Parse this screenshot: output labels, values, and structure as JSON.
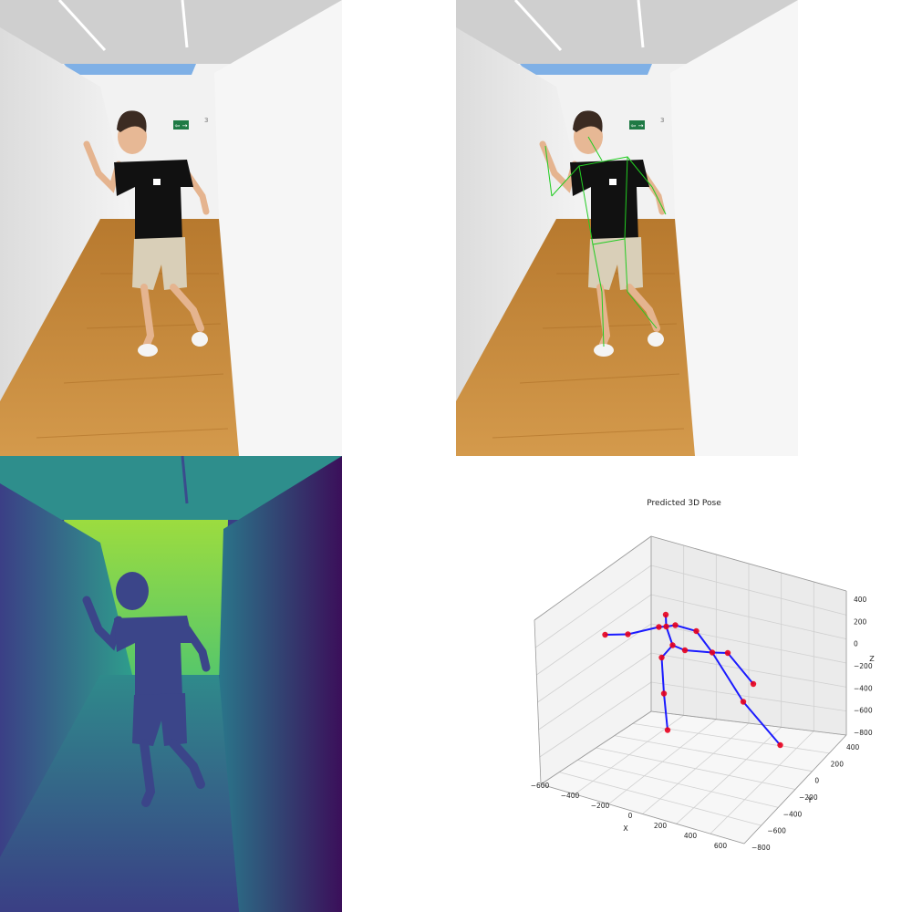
{
  "panels": {
    "photo_original": {},
    "photo_keypoints": {},
    "depth_map": {},
    "pose_plot": {}
  },
  "scene": {
    "exit_sign_glyph": "⇦ →",
    "room_number": "3"
  },
  "colors": {
    "wall": "#ececec",
    "floor": "#c98a3a",
    "shirt": "#111111",
    "shorts": "#d9cfb8",
    "skeleton_overlay": "#22cc22",
    "pose_bone": "#1a1aff",
    "pose_joint": "#e8001c",
    "depth_far": "#b8e23a",
    "depth_near": "#3b1f5e"
  },
  "chart_data": {
    "type": "scatter",
    "title": "Predicted 3D Pose",
    "xlabel": "X",
    "ylabel": "Y",
    "zlabel": "Z",
    "x_ticks": [
      "−600",
      "−400",
      "−200",
      "0",
      "200",
      "400",
      "600"
    ],
    "y_ticks": [
      "−800",
      "−600",
      "−400",
      "−200",
      "0",
      "200",
      "400"
    ],
    "z_ticks": [
      "400",
      "200",
      "0",
      "−200",
      "−400",
      "−600",
      "−800"
    ],
    "grid": true,
    "joints_projected": [
      {
        "u": 0.327,
        "v": 0.392
      },
      {
        "u": 0.377,
        "v": 0.391
      },
      {
        "u": 0.445,
        "v": 0.375
      },
      {
        "u": 0.461,
        "v": 0.374
      },
      {
        "u": 0.46,
        "v": 0.348
      },
      {
        "u": 0.481,
        "v": 0.371
      },
      {
        "u": 0.527,
        "v": 0.384
      },
      {
        "u": 0.475,
        "v": 0.415
      },
      {
        "u": 0.502,
        "v": 0.426
      },
      {
        "u": 0.562,
        "v": 0.431
      },
      {
        "u": 0.596,
        "v": 0.432
      },
      {
        "u": 0.652,
        "v": 0.5
      },
      {
        "u": 0.63,
        "v": 0.539
      },
      {
        "u": 0.711,
        "v": 0.634
      },
      {
        "u": 0.451,
        "v": 0.442
      },
      {
        "u": 0.456,
        "v": 0.521
      },
      {
        "u": 0.464,
        "v": 0.601
      }
    ],
    "bones": [
      [
        0,
        1
      ],
      [
        1,
        2
      ],
      [
        2,
        3
      ],
      [
        3,
        4
      ],
      [
        3,
        5
      ],
      [
        5,
        6
      ],
      [
        6,
        9
      ],
      [
        3,
        7
      ],
      [
        7,
        8
      ],
      [
        8,
        9
      ],
      [
        9,
        10
      ],
      [
        10,
        11
      ],
      [
        9,
        12
      ],
      [
        12,
        13
      ],
      [
        7,
        14
      ],
      [
        14,
        15
      ],
      [
        15,
        16
      ]
    ]
  }
}
